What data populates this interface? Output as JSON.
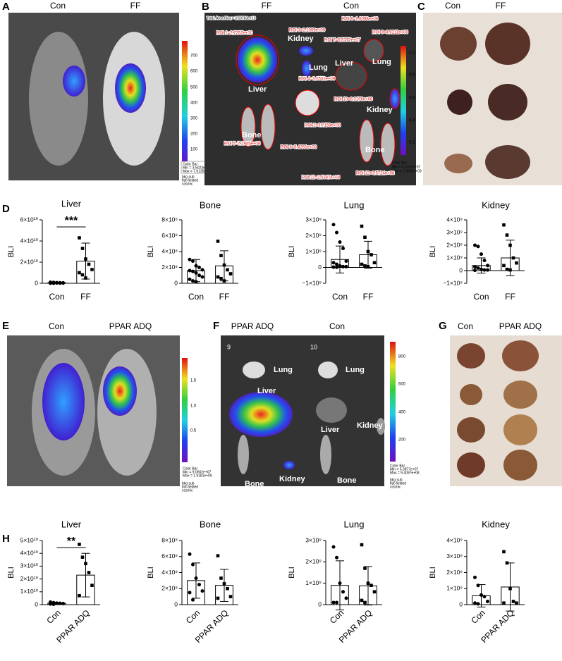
{
  "figure": {
    "A": {
      "letter": "A",
      "titles": [
        "Con",
        "FF"
      ],
      "scale": [
        "700",
        "600",
        "500",
        "400",
        "300",
        "200",
        "100"
      ],
      "note": [
        "Color Bar",
        "Min = 3.5023e+07",
        "Max = 7.6135e+08"
      ],
      "footer": [
        "bkg sub",
        "flat-fielded",
        "cosmic"
      ]
    },
    "B": {
      "letter": "B",
      "titles": [
        "FF",
        "Con"
      ],
      "total": "Total: Area Flux = 3.59783e+10",
      "rois": [
        "ROI 8=1.6098e+08",
        "ROI 1=2.7257e+10",
        "ROI 3=2.1009e+09",
        "ROI 9=4.9211e+08",
        "ROI 7=5.5777e+07",
        "ROI 4=3.0552e+09",
        "ROI 10=6.0176e+08",
        "ROI 2=3.7159e+08",
        "ROI 5=7.2945e+08",
        "ROI 6=5.4261e+08",
        "ROI 11=2.5347e+08",
        "ROI 12=3.5724e+08"
      ],
      "organs": [
        "Liver",
        "Kidney",
        "Lung",
        "Bone",
        "Lung",
        "Liver",
        "Kidney",
        "Bone"
      ],
      "scale": [
        "1.0",
        "0.8",
        "0.6",
        "0.4",
        "0.2"
      ],
      "note": [
        "Color Bar",
        "Min = 5.3747e+07",
        "Max = 1.0542e+09"
      ]
    },
    "C": {
      "letter": "C",
      "titles": [
        "Con",
        "FF"
      ]
    },
    "D": {
      "letter": "D"
    },
    "E": {
      "letter": "E",
      "titles": [
        "Con",
        "PPAR ADQ"
      ],
      "scale": [
        "1.5",
        "1.0",
        "0.5"
      ],
      "note": [
        "Color Bar",
        "Min = 9.0662e+07",
        "Max = 1.9181e+09"
      ],
      "footer": [
        "bkg sub",
        "flat-fielded",
        "cosmic"
      ]
    },
    "F": {
      "letter": "F",
      "titles": [
        "PPAR ADQ",
        "Con"
      ],
      "numbers": [
        "9",
        "10"
      ],
      "organs": [
        "Lung",
        "Liver",
        "Bone",
        "Kidney",
        "Lung",
        "Liver",
        "Kidney",
        "Bone"
      ],
      "scale": [
        "800",
        "600",
        "400",
        "200"
      ],
      "note": [
        "Color Bar",
        "Min = 5.3877e+07",
        "Max = 9.4097e+08"
      ],
      "footer": [
        "bkg sub",
        "flat-fielded",
        "cosmic"
      ]
    },
    "G": {
      "letter": "G",
      "titles": [
        "Con",
        "PPAR ADQ"
      ]
    },
    "H": {
      "letter": "H"
    }
  },
  "chart_data": [
    {
      "type": "bar",
      "title": "Liver",
      "y_label": "BLI",
      "categories": [
        "Con",
        "FF"
      ],
      "values": [
        500000000.0,
        21000000000.0
      ],
      "errors": [
        400000000.0,
        17000000000.0
      ],
      "markers": [
        "circle",
        "square"
      ],
      "points": [
        [
          1000000000.0,
          800000000.0,
          600000000.0,
          500000000.0,
          400000000.0,
          400000000.0,
          300000000.0,
          300000000.0,
          200000000.0,
          200000000.0,
          100000000.0,
          100000000.0
        ],
        [
          43000000000.0,
          33000000000.0,
          23000000000.0,
          18000000000.0,
          13000000000.0,
          10000000000.0,
          8000000000.0,
          5000000000.0
        ]
      ],
      "significance": "***",
      "ylim": [
        0,
        60000000000.0
      ],
      "yticks": [
        0,
        {
          "value": 20000000000.0,
          "label": "2×10¹⁰"
        },
        {
          "value": 40000000000.0,
          "label": "4×10¹⁰"
        },
        {
          "value": 60000000000.0,
          "label": "6×10¹⁰"
        }
      ]
    },
    {
      "type": "bar",
      "title": "Bone",
      "y_label": "BLI",
      "categories": [
        "Con",
        "FF"
      ],
      "values": [
        160000000.0,
        220000000.0
      ],
      "errors": [
        140000000.0,
        190000000.0
      ],
      "markers": [
        "circle",
        "square"
      ],
      "points": [
        [
          300000000.0,
          280000000.0,
          220000000.0,
          200000000.0,
          170000000.0,
          160000000.0,
          150000000.0,
          130000000.0,
          100000000.0,
          80000000.0,
          50000000.0,
          30000000.0,
          20000000.0
        ],
        [
          530000000.0,
          350000000.0,
          230000000.0,
          170000000.0,
          120000000.0,
          80000000.0,
          60000000.0,
          30000000.0
        ]
      ],
      "ylim": [
        0,
        800000000.0
      ],
      "yticks": [
        0,
        {
          "value": 200000000.0,
          "label": "2×10⁸"
        },
        {
          "value": 400000000.0,
          "label": "4×10⁸"
        },
        {
          "value": 600000000.0,
          "label": "6×10⁸"
        },
        {
          "value": 800000000.0,
          "label": "8×10⁸"
        }
      ]
    },
    {
      "type": "bar",
      "title": "Lung",
      "y_label": "BLI",
      "categories": [
        "Con",
        "FF"
      ],
      "values": [
        500000000.0,
        800000000.0
      ],
      "errors": [
        850000000.0,
        850000000.0
      ],
      "markers": [
        "circle",
        "square"
      ],
      "points": [
        [
          2700000000.0,
          2200000000.0,
          1600000000.0,
          1200000000.0,
          400000000.0,
          300000000.0,
          200000000.0,
          100000000.0,
          50000000.0,
          50000000.0,
          20000000.0,
          10000000.0
        ],
        [
          2600000000.0,
          1900000000.0,
          1000000000.0,
          800000000.0,
          300000000.0,
          200000000.0,
          100000000.0,
          50000000.0
        ]
      ],
      "ylim": [
        -1000000000.0,
        3000000000.0
      ],
      "yticks": [
        {
          "value": -1000000000.0,
          "label": "−1×10⁹"
        },
        0,
        {
          "value": 1000000000.0,
          "label": "1×10⁹"
        },
        {
          "value": 2000000000.0,
          "label": "2×10⁹"
        },
        {
          "value": 3000000000.0,
          "label": "3×10⁹"
        }
      ]
    },
    {
      "type": "bar",
      "title": "Kidney",
      "y_label": "BLI",
      "categories": [
        "Con",
        "FF"
      ],
      "values": [
        400000000.0,
        1000000000.0
      ],
      "errors": [
        600000000.0,
        1400000000.0
      ],
      "markers": [
        "circle",
        "square"
      ],
      "points": [
        [
          2000000000.0,
          1900000000.0,
          1300000000.0,
          800000000.0,
          400000000.0,
          300000000.0,
          200000000.0,
          100000000.0,
          50000000.0,
          50000000.0,
          20000000.0
        ],
        [
          3600000000.0,
          2800000000.0,
          2000000000.0,
          1000000000.0,
          600000000.0,
          400000000.0,
          100000000.0,
          50000000.0
        ]
      ],
      "ylim": [
        -1000000000.0,
        4000000000.0
      ],
      "yticks": [
        {
          "value": -1000000000.0,
          "label": "−1×10⁹"
        },
        0,
        {
          "value": 1000000000.0,
          "label": "1×10⁹"
        },
        {
          "value": 2000000000.0,
          "label": "2×10⁹"
        },
        {
          "value": 3000000000.0,
          "label": "3×10⁹"
        },
        {
          "value": 4000000000.0,
          "label": "4×10⁹"
        }
      ]
    },
    {
      "type": "bar",
      "title": "Liver",
      "y_label": "BLI",
      "categories": [
        "Con",
        "PPAR ADQ"
      ],
      "values": [
        1000000000.0,
        23000000000.0
      ],
      "errors": [
        500000000.0,
        17000000000.0
      ],
      "markers": [
        "circle",
        "square"
      ],
      "points": [
        [
          2000000000.0,
          1500000000.0,
          1200000000.0,
          1000000000.0,
          800000000.0,
          500000000.0,
          300000000.0
        ],
        [
          47000000000.0,
          37000000000.0,
          32000000000.0,
          25000000000.0,
          15000000000.0,
          7000000000.0
        ]
      ],
      "significance": "**",
      "ylim": [
        0,
        50000000000.0
      ],
      "yticks": [
        0,
        {
          "value": 10000000000.0,
          "label": "1×10¹⁰"
        },
        {
          "value": 20000000000.0,
          "label": "2×10¹⁰"
        },
        {
          "value": 30000000000.0,
          "label": "3×10¹⁰"
        },
        {
          "value": 40000000000.0,
          "label": "4×10¹⁰"
        },
        {
          "value": 50000000000.0,
          "label": "5×10¹⁰"
        }
      ]
    },
    {
      "type": "bar",
      "title": "Bone",
      "y_label": "BLI",
      "categories": [
        "Con",
        "PPAR ADQ"
      ],
      "values": [
        300000000.0,
        240000000.0
      ],
      "errors": [
        220000000.0,
        200000000.0
      ],
      "markers": [
        "circle",
        "square"
      ],
      "points": [
        [
          630000000.0,
          500000000.0,
          330000000.0,
          250000000.0,
          170000000.0,
          150000000.0,
          60000000.0
        ],
        [
          610000000.0,
          330000000.0,
          260000000.0,
          200000000.0,
          100000000.0,
          80000000.0
        ]
      ],
      "ylim": [
        0,
        800000000.0
      ],
      "yticks": [
        0,
        {
          "value": 200000000.0,
          "label": "2×10⁸"
        },
        {
          "value": 400000000.0,
          "label": "4×10⁸"
        },
        {
          "value": 600000000.0,
          "label": "6×10⁸"
        },
        {
          "value": 800000000.0,
          "label": "8×10⁸"
        }
      ]
    },
    {
      "type": "bar",
      "title": "Lung",
      "y_label": "BLI",
      "categories": [
        "Con",
        "PPAR ADQ"
      ],
      "values": [
        900000000.0,
        880000000.0
      ],
      "errors": [
        1150000000.0,
        900000000.0
      ],
      "markers": [
        "circle",
        "square"
      ],
      "points": [
        [
          2700000000.0,
          2200000000.0,
          1000000000.0,
          600000000.0,
          300000000.0,
          100000000.0,
          100000000.0
        ],
        [
          2800000000.0,
          1700000000.0,
          1000000000.0,
          900000000.0,
          600000000.0,
          200000000.0,
          100000000.0
        ]
      ],
      "ylim": [
        0,
        3000000000.0
      ],
      "yticks": [
        0,
        {
          "value": 1000000000.0,
          "label": "1×10⁹"
        },
        {
          "value": 2000000000.0,
          "label": "2×10⁹"
        },
        {
          "value": 3000000000.0,
          "label": "3×10⁹"
        }
      ]
    },
    {
      "type": "bar",
      "title": "Kidney",
      "y_label": "BLI",
      "categories": [
        "Con",
        "PPAR ADQ"
      ],
      "values": [
        550000000.0,
        1100000000.0
      ],
      "errors": [
        700000000.0,
        1500000000.0
      ],
      "markers": [
        "circle",
        "square"
      ],
      "points": [
        [
          1700000000.0,
          1200000000.0,
          600000000.0,
          500000000.0,
          200000000.0,
          100000000.0,
          50000000.0
        ],
        [
          3300000000.0,
          2600000000.0,
          1000000000.0,
          200000000.0,
          100000000.0,
          100000000.0
        ]
      ],
      "ylim": [
        0,
        4000000000.0
      ],
      "yticks": [
        0,
        {
          "value": 1000000000.0,
          "label": "1×10⁹"
        },
        {
          "value": 2000000000.0,
          "label": "2×10⁹"
        },
        {
          "value": 3000000000.0,
          "label": "3×10⁹"
        },
        {
          "value": 4000000000.0,
          "label": "4×10⁹"
        }
      ]
    }
  ]
}
